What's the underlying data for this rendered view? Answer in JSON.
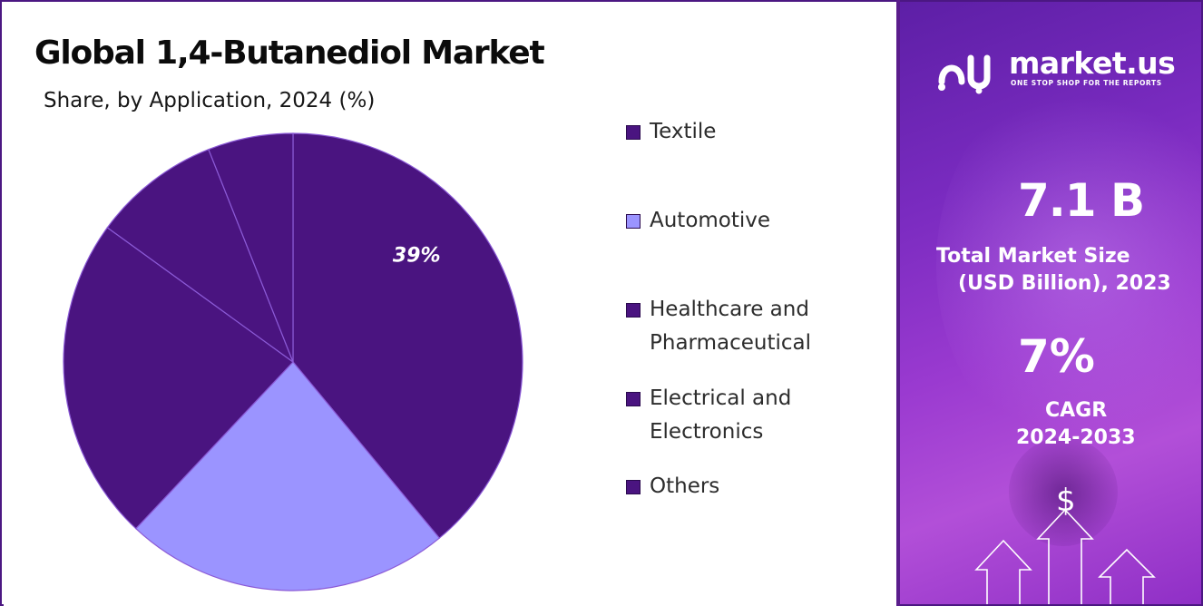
{
  "chart_data": {
    "type": "pie",
    "title": "Global 1,4-Butanediol Market",
    "subtitle": "Share, by Application, 2024 (%)",
    "series": [
      {
        "name": "Textile",
        "value": 39,
        "label": "39%",
        "color": "#4a1480"
      },
      {
        "name": "Automotive",
        "value": 23,
        "label": "",
        "color": "#9b94ff"
      },
      {
        "name": "Healthcare and Pharmaceutical",
        "value": 23,
        "label": "",
        "color": "#4a1480"
      },
      {
        "name": "Electrical and Electronics",
        "value": 9,
        "label": "",
        "color": "#4a1480"
      },
      {
        "name": "Others",
        "value": 6,
        "label": "",
        "color": "#4a1480"
      }
    ],
    "legend_position": "right"
  },
  "legend": {
    "items": [
      {
        "lines": [
          "Textile"
        ],
        "color": "#4a1480"
      },
      {
        "lines": [
          "Automotive"
        ],
        "color": "#9b94ff"
      },
      {
        "lines": [
          "Healthcare and",
          "Pharmaceutical"
        ],
        "color": "#4a1480"
      },
      {
        "lines": [
          "Electrical and",
          "Electronics"
        ],
        "color": "#4a1480"
      },
      {
        "lines": [
          "Others"
        ],
        "color": "#4a1480"
      }
    ]
  },
  "sidebar": {
    "brand": "market.us",
    "tagline": "ONE STOP SHOP FOR THE REPORTS",
    "market_size": "7.1 B",
    "market_size_label_1": "Total Market Size",
    "market_size_label_2": "(USD Billion), 2023",
    "cagr_value": "7%",
    "cagr_label": "CAGR",
    "cagr_period": "2024-2033",
    "currency_symbol": "$"
  },
  "colors": {
    "frame": "#4b1782",
    "panel_start": "#5d1fa6",
    "panel_end": "#b24fd8",
    "slice_dark": "#4a1480",
    "slice_light": "#9b94ff"
  }
}
